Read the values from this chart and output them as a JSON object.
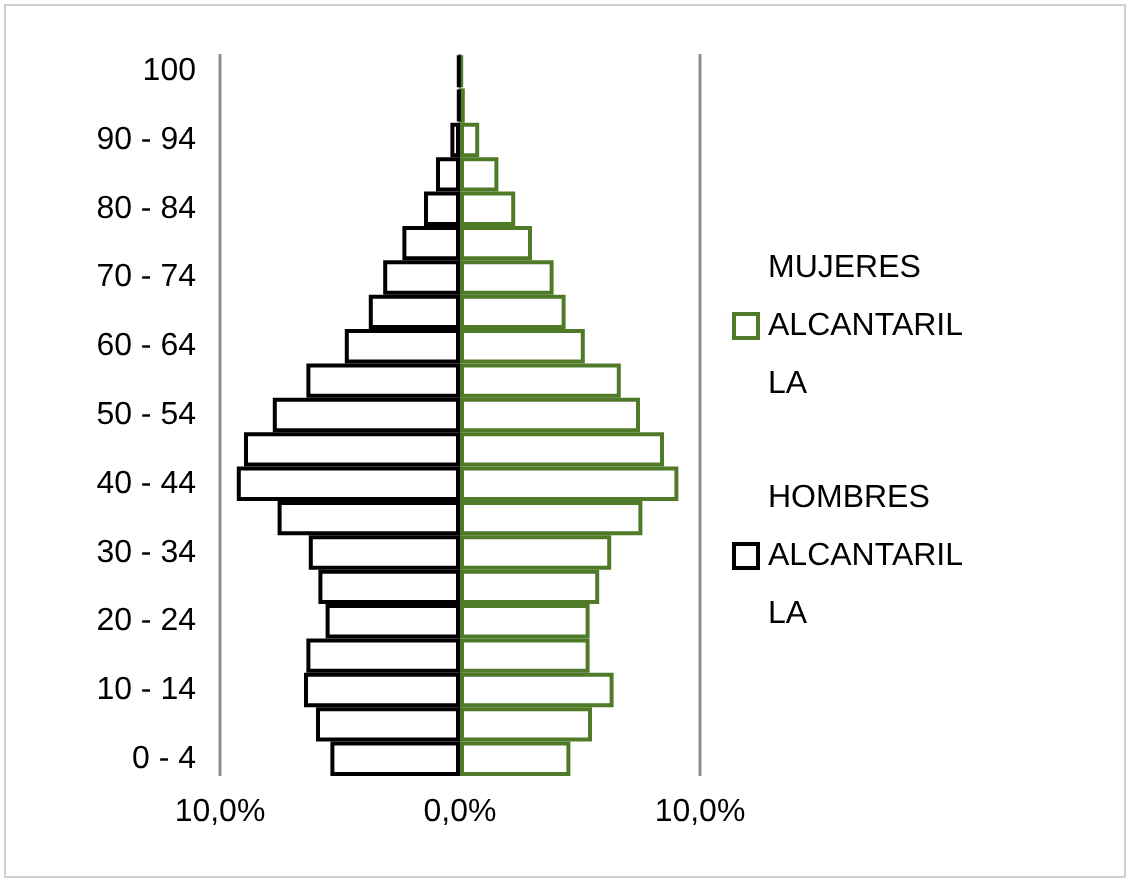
{
  "chart_data": {
    "type": "bar",
    "orientation": "horizontal",
    "categories": [
      "100",
      null,
      "90 - 94",
      null,
      "80 - 84",
      null,
      "70 - 74",
      null,
      "60 - 64",
      null,
      "50 - 54",
      null,
      "40 - 44",
      null,
      "30 - 34",
      null,
      "20 - 24",
      null,
      "10 - 14",
      null,
      "0 - 4"
    ],
    "series": [
      {
        "name": "MUJERES ALCANTARILLA",
        "color": "#4f7a28",
        "values": [
          0.1,
          0.2,
          0.8,
          1.6,
          2.3,
          3.0,
          3.9,
          4.4,
          5.2,
          6.7,
          7.5,
          8.5,
          9.1,
          7.6,
          6.3,
          5.8,
          5.4,
          5.4,
          6.4,
          5.5,
          4.6
        ]
      },
      {
        "name": "HOMBRES ALCANTARILLA",
        "color": "#000000",
        "values": [
          -0.1,
          -0.1,
          -0.4,
          -1.0,
          -1.5,
          -2.4,
          -3.2,
          -3.8,
          -4.8,
          -6.4,
          -7.8,
          -9.0,
          -9.3,
          -7.6,
          -6.3,
          -5.9,
          -5.6,
          -6.4,
          -6.5,
          -6.0,
          -5.4
        ]
      }
    ],
    "xlim": [
      -10,
      10
    ],
    "xticks": [
      {
        "value": -10,
        "label": "10,0%"
      },
      {
        "value": 0,
        "label": "0,0%"
      },
      {
        "value": 10,
        "label": "10,0%"
      }
    ],
    "grid": "x",
    "legend": "right",
    "stacked": true
  }
}
